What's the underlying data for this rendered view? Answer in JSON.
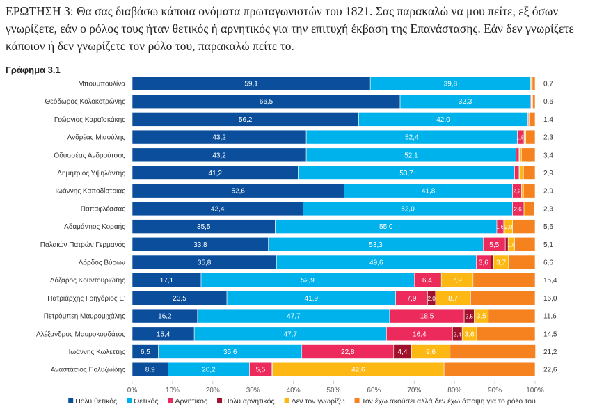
{
  "chart_data": {
    "type": "bar",
    "orientation": "horizontal",
    "stacked": true,
    "title": "ΕΡΩΤΗΣΗ 3: Θα σας διαβάσω κάποια ονόματα πρωταγωνιστών του 1821. Σας παρακαλώ να μου πείτε, εξ όσων γνωρίζετε, εάν ο ρόλος τους ήταν θετικός ή αρνητικός για την επιτυχή έκβαση της Επανάστασης. Εάν δεν γνωρίζετε κάποιον ή δεν γνωρίζετε τον ρόλο του, παρακαλώ πείτε το.",
    "subtitle": "Γράφημα 3.1",
    "xlim": [
      0,
      100
    ],
    "xticks": [
      "0%",
      "10%",
      "20%",
      "30%",
      "40%",
      "50%",
      "60%",
      "70%",
      "80%",
      "90%",
      "100%"
    ],
    "grid": true,
    "legend_position": "bottom",
    "categories": [
      "Μπουμπουλίνα",
      "Θεόδωρος Κολοκοτρώνης",
      "Γεώργιος Καραϊσκάκης",
      "Ανδρέας Μιαούλης",
      "Οδυσσέας Ανδρούτσος",
      "Δημήτριος Υψηλάντης",
      "Ιωάννης Καποδίστριας",
      "Παπαφλέσσας",
      "Αδαμάντιος Κοραής",
      "Παλαιών Πατρών Γερμανός",
      "Λόρδος Βύρων",
      "Λάζαρος Κουντουριώτης",
      "Πατριάρχης Γρηγόριος Ε'",
      "Πετρόμπεη Μαυρομιχάλης",
      "Αλέξανδρος Μαυροκορδάτος",
      "Ιωάννης Κωλέττης",
      "Αναστάσιος Πολυζωίδης"
    ],
    "series": [
      {
        "name": "Πολύ θετικός",
        "color": "#0b4f9c",
        "values": [
          59.1,
          66.5,
          56.2,
          43.2,
          43.2,
          41.2,
          52.6,
          42.4,
          35.5,
          33.8,
          35.8,
          17.1,
          23.5,
          16.2,
          15.4,
          6.5,
          8.9
        ]
      },
      {
        "name": "Θετικός",
        "color": "#00b2ec",
        "values": [
          39.8,
          32.3,
          42.0,
          52.4,
          52.1,
          53.7,
          41.8,
          52.0,
          55.0,
          53.3,
          49.6,
          52.9,
          41.9,
          47.7,
          47.7,
          35.6,
          20.2
        ]
      },
      {
        "name": "Αρνητικός",
        "color": "#ec2a5c",
        "values": [
          0.1,
          0.2,
          0.2,
          1.5,
          0.7,
          1.0,
          2.2,
          2.6,
          1.6,
          5.5,
          3.6,
          6.4,
          7.9,
          18.5,
          16.4,
          22.8,
          5.5
        ]
      },
      {
        "name": "Πολύ αρνητικός",
        "color": "#a0112c",
        "values": [
          0.0,
          0.1,
          0.0,
          0.2,
          0.1,
          0.2,
          0.0,
          0.2,
          0.3,
          0.7,
          0.7,
          0.3,
          2.0,
          2.5,
          2.4,
          4.4,
          0.2
        ]
      },
      {
        "name": "Δεν τον γνωρίζω",
        "color": "#fdb813",
        "values": [
          0.3,
          0.3,
          0.2,
          0.4,
          0.5,
          1.0,
          0.5,
          0.3,
          2.0,
          1.6,
          3.7,
          7.9,
          8.7,
          3.5,
          3.6,
          9.6,
          42.6
        ]
      },
      {
        "name": "Τον έχω ακούσει αλλά δεν έχω άποψη για το ρόλο του",
        "color": "#f5821f",
        "values": [
          0.7,
          0.6,
          1.4,
          2.3,
          3.4,
          2.9,
          2.9,
          2.3,
          5.6,
          5.1,
          6.6,
          15.4,
          16.0,
          11.6,
          14.5,
          21.2,
          22.6
        ]
      }
    ]
  }
}
